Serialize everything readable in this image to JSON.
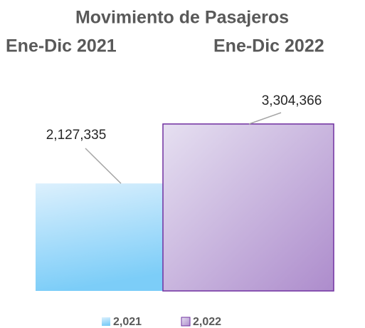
{
  "chart_data": {
    "type": "bar",
    "title": "Movimiento de Pasajeros",
    "subtitle": [
      "Ene-Dic 2021",
      "Ene-Dic 2022"
    ],
    "ylim": [
      0,
      3500000
    ],
    "series": [
      {
        "name": "2,021",
        "color": "#8fd3f9",
        "values": [
          2127335
        ],
        "value_labels": [
          "2,127,335"
        ]
      },
      {
        "name": "2,022",
        "color": "#c9b3de",
        "values": [
          3304366
        ],
        "value_labels": [
          "3,304,366"
        ]
      }
    ]
  }
}
